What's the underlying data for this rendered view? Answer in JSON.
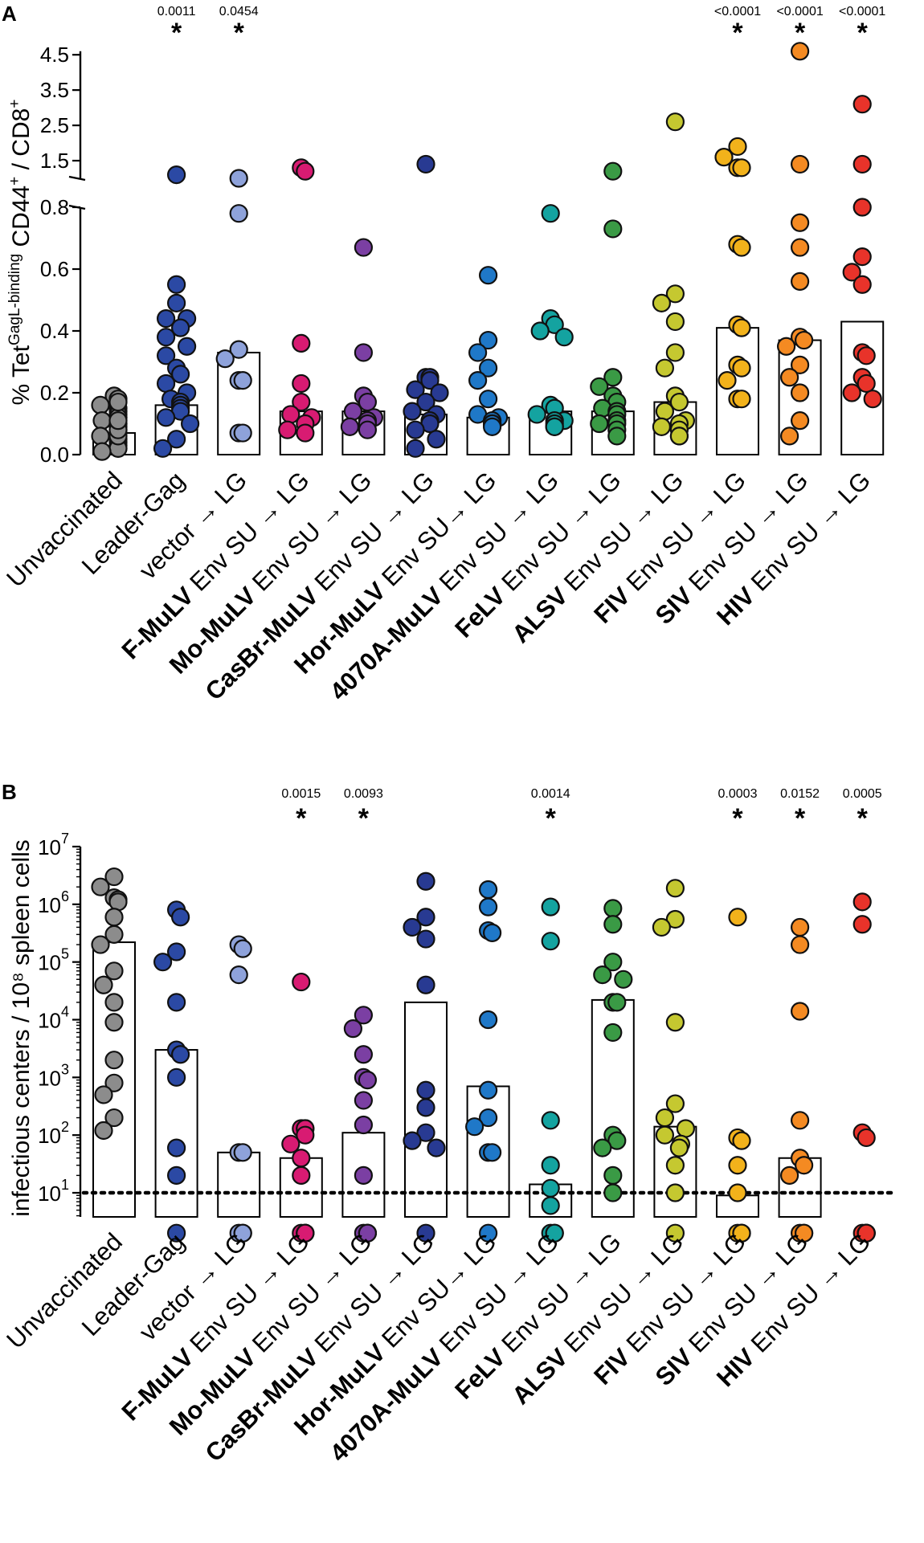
{
  "chart_data": [
    {
      "type": "scatter",
      "panel": "A",
      "ylabel_parts": [
        "% Tet",
        "GagL-binding",
        " CD44",
        "+",
        " / CD8",
        "+"
      ],
      "y_lower_range": [
        0,
        0.8
      ],
      "y_lower_ticks": [
        "0.0",
        "0.2",
        "0.4",
        "0.6",
        "0.8"
      ],
      "y_upper_range": [
        1.0,
        4.8
      ],
      "y_upper_ticks": [
        "1.5",
        "2.5",
        "3.5",
        "4.5"
      ],
      "groups": [
        {
          "label": "Unvaccinated",
          "color": "#8c8c8c",
          "bar": 0.07,
          "values": [
            0.19,
            0.18,
            0.16,
            0.15,
            0.14,
            0.13,
            0.12,
            0.12,
            0.11,
            0.1,
            0.1,
            0.09,
            0.08,
            0.07,
            0.06,
            0.05,
            0.04,
            0.03,
            0.02,
            0.02,
            0.01,
            0.06,
            0.08,
            0.11,
            0.17
          ]
        },
        {
          "label": "Leader-Gag",
          "color": "#2b49a4",
          "bar": 0.16,
          "p": "0.0011",
          "star": "*",
          "values": [
            1.1,
            0.55,
            0.49,
            0.44,
            0.44,
            0.41,
            0.38,
            0.35,
            0.32,
            0.28,
            0.26,
            0.23,
            0.2,
            0.18,
            0.17,
            0.16,
            0.15,
            0.14,
            0.12,
            0.1,
            0.05,
            0.02
          ]
        },
        {
          "label": "vector → LG",
          "color": "#8ea2da",
          "bar": 0.33,
          "p": "0.0454",
          "star": "*",
          "values": [
            1.0,
            0.78,
            0.34,
            0.31,
            0.24,
            0.24,
            0.07,
            0.07
          ]
        },
        {
          "bold": "F-MuLV",
          "label": " Env SU → LG",
          "color": "#d81b72",
          "bar": 0.14,
          "values": [
            1.3,
            1.2,
            0.36,
            0.23,
            0.17,
            0.13,
            0.12,
            0.1,
            0.08,
            0.07
          ]
        },
        {
          "bold": "Mo-MuLV",
          "label": " Env SU → LG",
          "color": "#7b3fa3",
          "bar": 0.14,
          "values": [
            0.67,
            0.33,
            0.19,
            0.17,
            0.14,
            0.12,
            0.11,
            0.1,
            0.09,
            0.08
          ]
        },
        {
          "bold": "CasBr-MuLV",
          "label": " Env SU → LG",
          "color": "#283a92",
          "bar": 0.13,
          "values": [
            1.4,
            0.25,
            0.25,
            0.24,
            0.21,
            0.2,
            0.17,
            0.14,
            0.13,
            0.11,
            0.1,
            0.08,
            0.05,
            0.02
          ]
        },
        {
          "bold": "Hor-MuLV",
          "label": " Env SU→ LG",
          "color": "#1f78c8",
          "bar": 0.12,
          "values": [
            0.58,
            0.37,
            0.33,
            0.28,
            0.24,
            0.18,
            0.13,
            0.12,
            0.11,
            0.1,
            0.1,
            0.1,
            0.09
          ]
        },
        {
          "bold": "4070A-MuLV",
          "label": " Env SU → LG",
          "color": "#14a3a0",
          "bar": 0.14,
          "values": [
            0.78,
            0.44,
            0.42,
            0.4,
            0.38,
            0.16,
            0.15,
            0.13,
            0.11,
            0.11,
            0.1,
            0.09,
            0.09
          ]
        },
        {
          "bold": "FeLV",
          "label": " Env SU → LG",
          "color": "#3a9a45",
          "bar": 0.14,
          "values": [
            1.2,
            0.73,
            0.25,
            0.22,
            0.19,
            0.17,
            0.15,
            0.14,
            0.13,
            0.11,
            0.1,
            0.1,
            0.08,
            0.06
          ]
        },
        {
          "bold": "ALSV",
          "label": " Env SU → LG",
          "color": "#c5c830",
          "bar": 0.17,
          "values": [
            2.6,
            0.52,
            0.49,
            0.43,
            0.33,
            0.28,
            0.19,
            0.17,
            0.14,
            0.11,
            0.1,
            0.09,
            0.08,
            0.06,
            0.06
          ]
        },
        {
          "bold": "FIV",
          "label": " Env SU → LG",
          "color": "#f2b21b",
          "bar": 0.41,
          "values": [
            1.9,
            1.6,
            1.3,
            1.3,
            0.68,
            0.67,
            0.42,
            0.41,
            0.29,
            0.28,
            0.24,
            0.18,
            0.18
          ]
        },
        {
          "bold": "SIV",
          "label": " Env SU → LG",
          "color": "#f48a22",
          "bar": 0.37,
          "p": "<0.0001",
          "star": "*",
          "values": [
            4.6,
            1.4,
            0.75,
            0.67,
            0.56,
            0.38,
            0.37,
            0.35,
            0.29,
            0.25,
            0.2,
            0.11,
            0.06
          ]
        },
        {
          "bold": "HIV",
          "label": " Env SU → LG",
          "color": "#e8332a",
          "bar": 0.43,
          "p": "<0.0001",
          "star": "*",
          "values": [
            3.1,
            1.4,
            0.8,
            0.64,
            0.59,
            0.55,
            0.33,
            0.32,
            0.25,
            0.23,
            0.2,
            0.18
          ]
        }
      ],
      "extra_annotations": [
        {
          "group": 10,
          "p": "<0.0001",
          "star": "*"
        }
      ]
    },
    {
      "type": "scatter",
      "panel": "B",
      "ylabel": "infectious centers / 10⁸ spleen cells",
      "y_scale": "log",
      "ylim_log10": [
        0.3,
        7
      ],
      "y_ticks": [
        {
          "base": "10",
          "exp": "1"
        },
        {
          "base": "10",
          "exp": "2"
        },
        {
          "base": "10",
          "exp": "3"
        },
        {
          "base": "10",
          "exp": "4"
        },
        {
          "base": "10",
          "exp": "5"
        },
        {
          "base": "10",
          "exp": "6"
        },
        {
          "base": "10",
          "exp": "7"
        }
      ],
      "detection_limit": 10,
      "groups": [
        {
          "label": "Unvaccinated",
          "color": "#8c8c8c",
          "bar": 220000,
          "values": [
            3000000,
            2000000,
            1300000,
            1200000,
            1100000,
            600000,
            300000,
            200000,
            70000,
            40000,
            20000,
            9000,
            2000,
            800,
            500,
            200,
            120
          ]
        },
        {
          "label": "Leader-Gag",
          "color": "#2b49a4",
          "bar": 3000,
          "values": [
            800000,
            600000,
            150000,
            100000,
            20000,
            3000,
            2500,
            1000,
            60,
            20,
            2
          ]
        },
        {
          "label": "vector → LG",
          "color": "#8ea2da",
          "bar": 50,
          "values": [
            200000,
            170000,
            60000,
            50,
            50,
            2,
            2,
            2
          ]
        },
        {
          "bold": "F-MuLV",
          "label": " Env SU → LG",
          "color": "#d81b72",
          "bar": 40,
          "p": "0.0015",
          "star": "*",
          "values": [
            45000,
            130,
            130,
            130,
            100,
            70,
            40,
            20,
            2,
            2,
            2,
            2
          ]
        },
        {
          "bold": "Mo-MuLV",
          "label": " Env SU → LG",
          "color": "#7b3fa3",
          "bar": 110,
          "p": "0.0093",
          "star": "*",
          "values": [
            12000,
            7000,
            2500,
            1000,
            900,
            400,
            150,
            20,
            2,
            2,
            2,
            2
          ]
        },
        {
          "bold": "CasBr-MuLV",
          "label": " Env SU → LG",
          "color": "#283a92",
          "bar": 20000,
          "values": [
            2500000,
            600000,
            400000,
            250000,
            40000,
            600,
            300,
            110,
            80,
            60,
            2
          ]
        },
        {
          "bold": "Hor-MuLV",
          "label": " Env SU→ LG",
          "color": "#1f78c8",
          "bar": 700,
          "values": [
            1800000,
            900000,
            350000,
            320000,
            10000,
            600,
            200,
            140,
            50,
            50,
            2
          ]
        },
        {
          "bold": "4070A-MuLV",
          "label": " Env SU → LG",
          "color": "#14a3a0",
          "bar": 14,
          "p": "0.0014",
          "star": "*",
          "values": [
            900000,
            230000,
            180,
            30,
            12,
            6,
            2,
            2,
            2
          ]
        },
        {
          "bold": "FeLV",
          "label": " Env SU → LG",
          "color": "#3a9a45",
          "bar": 22000,
          "values": [
            850000,
            450000,
            100000,
            60000,
            50000,
            20000,
            20000,
            6000,
            100,
            80,
            60,
            20,
            10
          ]
        },
        {
          "bold": "ALSV",
          "label": " Env SU → LG",
          "color": "#c5c830",
          "bar": 140,
          "values": [
            1900000,
            550000,
            400000,
            9000,
            350,
            200,
            130,
            100,
            70,
            60,
            30,
            10,
            2
          ]
        },
        {
          "bold": "FIV",
          "label": " Env SU → LG",
          "color": "#f2b21b",
          "bar": 9,
          "p": "0.0003",
          "star": "*",
          "values": [
            600000,
            90,
            80,
            30,
            10,
            2,
            2,
            2,
            2
          ]
        },
        {
          "bold": "SIV",
          "label": " Env SU → LG",
          "color": "#f48a22",
          "bar": 40,
          "p": "0.0152",
          "star": "*",
          "values": [
            400000,
            200000,
            14000,
            180,
            40,
            30,
            20,
            2,
            2,
            2
          ]
        },
        {
          "bold": "HIV",
          "label": " Env SU → LG",
          "color": "#e8332a",
          "bar": 2,
          "p": "0.0005",
          "star": "*",
          "values": [
            1100000,
            450000,
            110,
            90,
            2,
            2,
            2,
            2,
            2,
            2
          ]
        }
      ]
    }
  ]
}
